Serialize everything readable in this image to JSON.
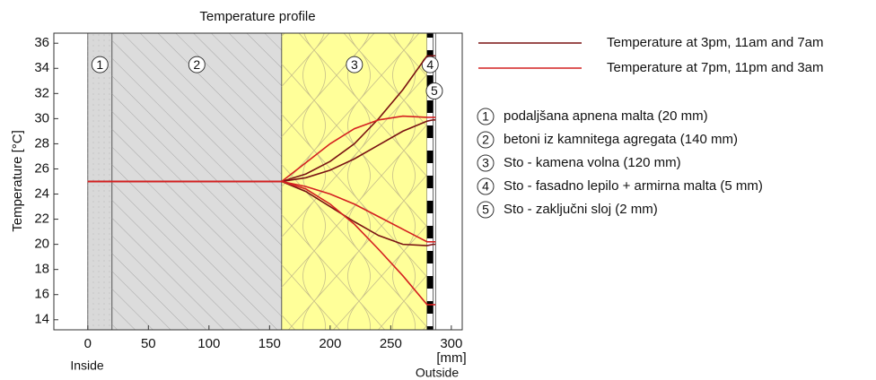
{
  "chart_data": {
    "type": "line",
    "title": "Temperature profile",
    "y_label": "Temperature  [°C]",
    "x_unit": "[mm]",
    "annotations": {
      "inside": "Inside",
      "outside": "Outside"
    },
    "xlim": [
      -28,
      309
    ],
    "ylim": [
      13.2,
      36.8
    ],
    "xticks": [
      0,
      50,
      100,
      150,
      200,
      250,
      300
    ],
    "yticks": [
      14,
      16,
      18,
      20,
      22,
      24,
      26,
      28,
      30,
      32,
      34,
      36
    ],
    "layers": [
      {
        "label": "1",
        "name": "podaljšana apnena malta (20 mm)",
        "start": 0,
        "end": 20,
        "color": "#d9d9d9"
      },
      {
        "label": "2",
        "name": "betoni iz kamnitega agregata (140 mm)",
        "start": 20,
        "end": 160,
        "color": "#dcdcdc"
      },
      {
        "label": "3",
        "name": "Sto - kamena volna (120 mm)",
        "start": 160,
        "end": 280,
        "color": "#ffff99"
      },
      {
        "label": "4",
        "name": "Sto - fasadno lepilo + armirna malta (5 mm)",
        "start": 280,
        "end": 285,
        "color": "#000000"
      },
      {
        "label": "5",
        "name": "Sto - zaključni sloj (2 mm)",
        "start": 285,
        "end": 287,
        "color": "#ffffff"
      }
    ],
    "x": [
      0,
      20,
      160,
      180,
      200,
      220,
      240,
      260,
      280,
      285,
      287
    ],
    "series": [
      {
        "name": "Temperature at 3pm, 11am and 7am",
        "color": "#7a1212",
        "curves": [
          [
            25,
            25,
            25,
            25.6,
            26.6,
            28,
            30,
            32.3,
            35,
            35,
            35
          ],
          [
            25,
            25,
            25,
            25.3,
            25.9,
            26.8,
            27.9,
            29,
            29.8,
            29.9,
            29.9
          ],
          [
            25,
            25,
            25,
            24.2,
            23,
            21.8,
            20.7,
            20,
            19.9,
            20,
            20
          ]
        ]
      },
      {
        "name": "Temperature at 7pm, 11pm and 3am",
        "color": "#d42020",
        "curves": [
          [
            25,
            25,
            25,
            26.5,
            28,
            29.2,
            29.9,
            30.2,
            30.1,
            30.1,
            30.1
          ],
          [
            25,
            25,
            25,
            24.6,
            24,
            23.2,
            22.2,
            21.2,
            20.2,
            20.2,
            20.2
          ],
          [
            25,
            25,
            25,
            24.4,
            23.2,
            21.6,
            19.6,
            17.5,
            15.2,
            15.2,
            15.2
          ]
        ]
      }
    ]
  }
}
